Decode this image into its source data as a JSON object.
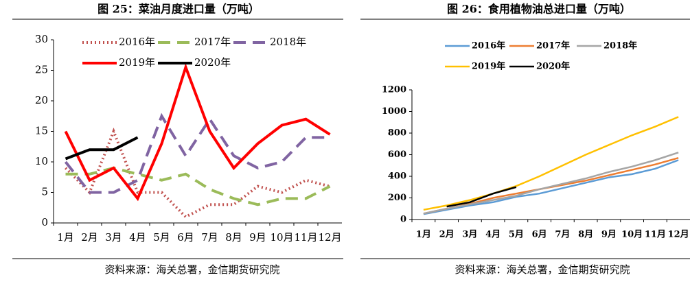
{
  "chart_data": [
    {
      "type": "line",
      "title": "图 25：菜油月度进口量（万吨）",
      "source": "资料来源：海关总署，金信期货研究院",
      "categories": [
        "1月",
        "2月",
        "3月",
        "4月",
        "5月",
        "6月",
        "7月",
        "8月",
        "9月",
        "10月",
        "11月",
        "12月"
      ],
      "ylim": [
        0,
        30
      ],
      "yticks": [
        0,
        5,
        10,
        15,
        20,
        25,
        30
      ],
      "series": [
        {
          "name": "2016年",
          "color": "#c0504d",
          "style": "dotted",
          "values": [
            9,
            5,
            15,
            5,
            5,
            1,
            3,
            3,
            6,
            5,
            7,
            6
          ]
        },
        {
          "name": "2017年",
          "color": "#9bbb59",
          "style": "dashed",
          "values": [
            8,
            8,
            9,
            8,
            7,
            8,
            5.5,
            4,
            3,
            4,
            4,
            6
          ]
        },
        {
          "name": "2018年",
          "color": "#8064a2",
          "style": "dashed",
          "values": [
            10,
            5,
            5,
            7,
            17.5,
            11,
            17,
            11,
            9,
            10,
            14,
            14
          ]
        },
        {
          "name": "2019年",
          "color": "#ff0000",
          "style": "solid",
          "values": [
            15,
            7,
            9,
            4,
            13,
            25.5,
            15,
            9,
            13,
            16,
            17,
            14.5
          ]
        },
        {
          "name": "2020年",
          "color": "#000000",
          "style": "solid",
          "values": [
            10.5,
            12,
            12,
            14,
            null,
            null,
            null,
            null,
            null,
            null,
            null,
            null
          ]
        }
      ]
    },
    {
      "type": "line",
      "title": "图 26：食用植物油总进口量（万吨）",
      "source": "资料来源：海关总署，金信期货研究院",
      "categories": [
        "1月",
        "2月",
        "3月",
        "4月",
        "5月",
        "6月",
        "7月",
        "8月",
        "9月",
        "10月",
        "11月",
        "12月"
      ],
      "ylim": [
        0,
        1200
      ],
      "yticks": [
        0,
        200,
        400,
        600,
        800,
        1000,
        1200
      ],
      "series": [
        {
          "name": "2016年",
          "color": "#5b9bd5",
          "style": "solid",
          "values": [
            50,
            90,
            130,
            160,
            210,
            240,
            290,
            340,
            390,
            420,
            470,
            550
          ]
        },
        {
          "name": "2017年",
          "color": "#ed7d31",
          "style": "solid",
          "values": [
            55,
            100,
            145,
            200,
            240,
            280,
            320,
            360,
            410,
            460,
            510,
            570
          ]
        },
        {
          "name": "2018年",
          "color": "#a5a5a5",
          "style": "solid",
          "values": [
            55,
            100,
            140,
            180,
            220,
            280,
            330,
            380,
            440,
            490,
            550,
            620
          ]
        },
        {
          "name": "2019年",
          "color": "#ffc000",
          "style": "solid",
          "values": [
            90,
            130,
            180,
            240,
            310,
            400,
            500,
            600,
            690,
            780,
            860,
            950
          ]
        },
        {
          "name": "2020年",
          "color": "#000000",
          "style": "solid",
          "values": [
            null,
            120,
            160,
            240,
            300,
            null,
            null,
            null,
            null,
            null,
            null,
            null
          ]
        }
      ]
    }
  ]
}
